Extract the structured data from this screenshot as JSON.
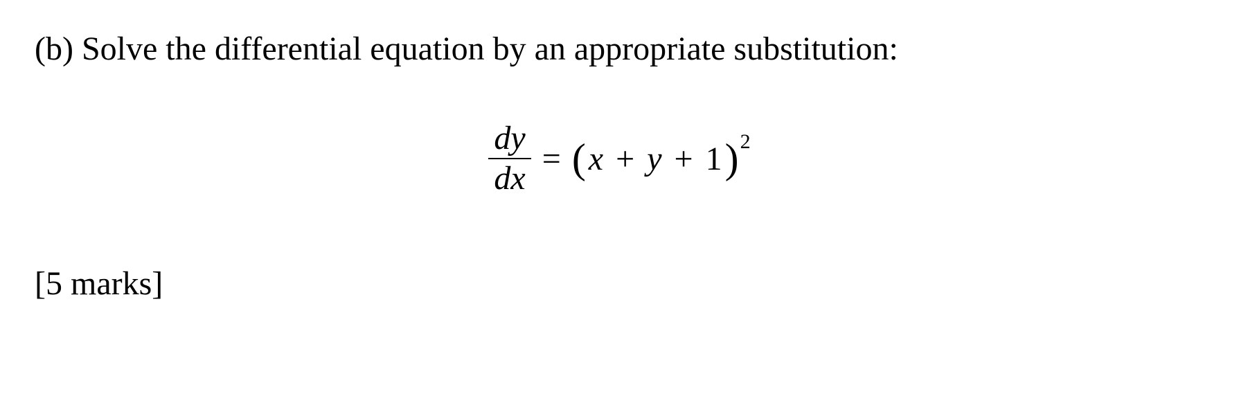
{
  "question": {
    "label": "(b)",
    "text": "Solve the differential equation by an appropriate substitution:",
    "marks": "[5 marks]"
  },
  "equation": {
    "lhs": {
      "numerator": "dy",
      "denominator": "dx"
    },
    "equals": "=",
    "rhs": {
      "open_paren": "(",
      "term1": "x",
      "op1": "+",
      "term2": "y",
      "op2": "+",
      "term3": "1",
      "close_paren": ")",
      "exponent": "2"
    }
  },
  "style": {
    "font_family": "Times New Roman",
    "font_size_pt": 36,
    "text_color": "#000000",
    "background_color": "#ffffff"
  }
}
